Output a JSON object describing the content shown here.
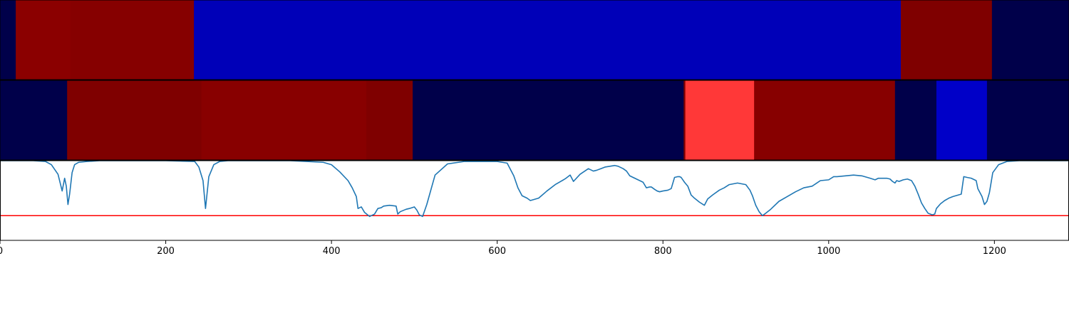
{
  "chart_data": [
    {
      "type": "heatmap",
      "xlim": [
        0,
        1290
      ],
      "segments": [
        {
          "start": 0,
          "end": 19,
          "color": "#00004a"
        },
        {
          "start": 19,
          "end": 85,
          "color": "#8b0000"
        },
        {
          "start": 85,
          "end": 234,
          "color": "#860000"
        },
        {
          "start": 234,
          "end": 1087,
          "color": "#0000b8"
        },
        {
          "start": 1087,
          "end": 1197,
          "color": "#7f0000"
        },
        {
          "start": 1197,
          "end": 1290,
          "color": "#00004a"
        }
      ]
    },
    {
      "type": "heatmap",
      "xlim": [
        0,
        1290
      ],
      "segments": [
        {
          "start": 0,
          "end": 81,
          "color": "#00004a"
        },
        {
          "start": 81,
          "end": 243,
          "color": "#7f0000"
        },
        {
          "start": 243,
          "end": 442,
          "color": "#880000"
        },
        {
          "start": 442,
          "end": 498,
          "color": "#7f0000"
        },
        {
          "start": 498,
          "end": 825,
          "color": "#00004a"
        },
        {
          "start": 825,
          "end": 827,
          "color": "#7f0000"
        },
        {
          "start": 827,
          "end": 910,
          "color": "#ff3838"
        },
        {
          "start": 910,
          "end": 1080,
          "color": "#870000"
        },
        {
          "start": 1080,
          "end": 1130,
          "color": "#00004a"
        },
        {
          "start": 1130,
          "end": 1191,
          "color": "#0000c8"
        },
        {
          "start": 1191,
          "end": 1290,
          "color": "#00004a"
        }
      ]
    },
    {
      "type": "line",
      "xlim": [
        0,
        1290
      ],
      "ylim": [
        0,
        1
      ],
      "threshold": 0.31,
      "threshold_color": "#ff0000",
      "line_color": "#1f77b4",
      "xticks": [
        0,
        200,
        400,
        600,
        800,
        1000,
        1200
      ],
      "xtick_labels": [
        "0",
        "200",
        "400",
        "600",
        "800",
        "1000",
        "1200"
      ],
      "series": [
        {
          "x": [
            0,
            40,
            55,
            62,
            70,
            75,
            78,
            80,
            82,
            84,
            87,
            90,
            95,
            105,
            120,
            150,
            200,
            235,
            240,
            245,
            248,
            252,
            258,
            265,
            275,
            300,
            350,
            390,
            400,
            410,
            420,
            425,
            430,
            432,
            436,
            440,
            446,
            452,
            456,
            460,
            463,
            470,
            478,
            480,
            483,
            490,
            494,
            497,
            500,
            503,
            506,
            510,
            515,
            525,
            540,
            560,
            600,
            612,
            615,
            620,
            625,
            630,
            636,
            640,
            650,
            660,
            670,
            680,
            683,
            688,
            692,
            700,
            710,
            716,
            720,
            725,
            730,
            736,
            742,
            746,
            752,
            756,
            760,
            770,
            776,
            780,
            784,
            786,
            790,
            793,
            796,
            800,
            806,
            810,
            814,
            818,
            820,
            822,
            826,
            830,
            834,
            838,
            844,
            850,
            854,
            860,
            868,
            874,
            880,
            890,
            900,
            905,
            908,
            912,
            916,
            920,
            924,
            930,
            940,
            950,
            960,
            970,
            980,
            990,
            1000,
            1006,
            1010,
            1020,
            1030,
            1040,
            1050,
            1056,
            1060,
            1070,
            1074,
            1077,
            1080,
            1082,
            1085,
            1090,
            1095,
            1100,
            1104,
            1108,
            1112,
            1116,
            1120,
            1125,
            1128,
            1130,
            1135,
            1140,
            1145,
            1150,
            1160,
            1163,
            1167,
            1172,
            1178,
            1180,
            1185,
            1188,
            1191,
            1194,
            1198,
            1205,
            1215,
            1230,
            1250,
            1270,
            1290
          ],
          "y": [
            1.0,
            1.0,
            0.99,
            0.95,
            0.83,
            0.62,
            0.78,
            0.68,
            0.45,
            0.58,
            0.85,
            0.95,
            0.98,
            0.99,
            1.0,
            1.0,
            1.0,
            0.99,
            0.92,
            0.75,
            0.4,
            0.8,
            0.95,
            0.99,
            1.0,
            1.0,
            1.0,
            0.98,
            0.95,
            0.86,
            0.75,
            0.66,
            0.55,
            0.4,
            0.42,
            0.35,
            0.3,
            0.33,
            0.4,
            0.41,
            0.43,
            0.44,
            0.43,
            0.33,
            0.36,
            0.39,
            0.4,
            0.41,
            0.42,
            0.38,
            0.32,
            0.3,
            0.45,
            0.82,
            0.96,
            0.99,
            0.99,
            0.97,
            0.91,
            0.81,
            0.66,
            0.56,
            0.53,
            0.5,
            0.53,
            0.62,
            0.7,
            0.76,
            0.78,
            0.82,
            0.74,
            0.83,
            0.9,
            0.87,
            0.88,
            0.9,
            0.92,
            0.93,
            0.94,
            0.93,
            0.9,
            0.87,
            0.81,
            0.76,
            0.73,
            0.66,
            0.67,
            0.67,
            0.64,
            0.62,
            0.61,
            0.62,
            0.63,
            0.65,
            0.79,
            0.8,
            0.8,
            0.79,
            0.73,
            0.68,
            0.57,
            0.53,
            0.48,
            0.44,
            0.52,
            0.57,
            0.63,
            0.66,
            0.7,
            0.72,
            0.7,
            0.63,
            0.56,
            0.44,
            0.36,
            0.31,
            0.34,
            0.39,
            0.49,
            0.55,
            0.61,
            0.66,
            0.68,
            0.75,
            0.76,
            0.8,
            0.8,
            0.81,
            0.82,
            0.81,
            0.78,
            0.76,
            0.78,
            0.78,
            0.77,
            0.74,
            0.72,
            0.75,
            0.74,
            0.76,
            0.77,
            0.75,
            0.68,
            0.58,
            0.47,
            0.4,
            0.34,
            0.32,
            0.33,
            0.4,
            0.46,
            0.5,
            0.53,
            0.55,
            0.58,
            0.8,
            0.79,
            0.78,
            0.75,
            0.65,
            0.55,
            0.45,
            0.49,
            0.6,
            0.85,
            0.95,
            0.99,
            1.0,
            1.0,
            1.0,
            1.0
          ]
        }
      ]
    }
  ]
}
